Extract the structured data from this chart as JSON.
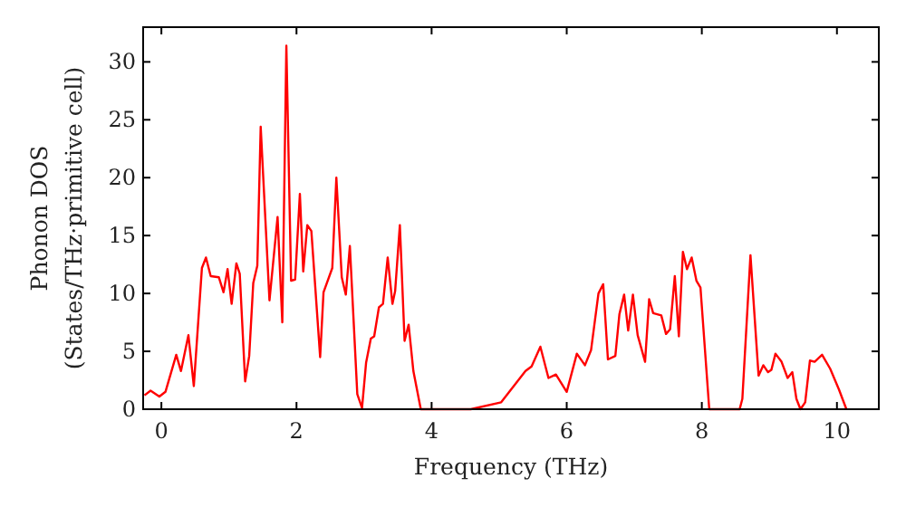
{
  "chart_data": {
    "type": "line",
    "xlabel": "Frequency (THz)",
    "ylabel": "Phonon DOS\n(States/THz·primitive cell)",
    "xlim": [
      -0.27,
      10.62
    ],
    "ylim": [
      0,
      33
    ],
    "xticks": [
      0,
      2,
      4,
      6,
      8,
      10
    ],
    "yticks": [
      0,
      5,
      10,
      15,
      20,
      25,
      30
    ],
    "grid": false,
    "series": [
      {
        "color": "#ff0000",
        "x": [
          -0.25,
          -0.16,
          -0.03,
          0.06,
          0.22,
          0.29,
          0.4,
          0.48,
          0.6,
          0.66,
          0.73,
          0.85,
          0.92,
          0.98,
          1.04,
          1.11,
          1.16,
          1.24,
          1.3,
          1.36,
          1.42,
          1.47,
          1.6,
          1.72,
          1.79,
          1.85,
          1.92,
          1.98,
          2.05,
          2.1,
          2.16,
          2.22,
          2.35,
          2.4,
          2.53,
          2.59,
          2.67,
          2.73,
          2.79,
          2.9,
          2.97,
          3.03,
          3.1,
          3.15,
          3.22,
          3.28,
          3.35,
          3.42,
          3.46,
          3.53,
          3.6,
          3.66,
          3.73,
          3.84,
          4.58,
          5.03,
          5.39,
          5.48,
          5.61,
          5.73,
          5.84,
          6.0,
          6.15,
          6.27,
          6.36,
          6.47,
          6.54,
          6.61,
          6.72,
          6.78,
          6.85,
          6.91,
          6.98,
          7.05,
          7.16,
          7.22,
          7.28,
          7.4,
          7.47,
          7.53,
          7.6,
          7.66,
          7.72,
          7.78,
          7.85,
          7.92,
          7.98,
          8.11,
          8.56,
          8.6,
          8.72,
          8.84,
          8.91,
          8.98,
          9.03,
          9.09,
          9.18,
          9.27,
          9.34,
          9.4,
          9.46,
          9.53,
          9.6,
          9.67,
          9.78,
          9.9,
          10.03,
          10.14
        ],
        "values": [
          1.2,
          1.6,
          1.1,
          1.5,
          4.7,
          3.3,
          6.4,
          2,
          12.2,
          13.1,
          11.5,
          11.4,
          10.1,
          12.1,
          9.1,
          12.6,
          11.7,
          2.4,
          4.6,
          10.9,
          12.4,
          24.4,
          9.4,
          16.6,
          7.5,
          31.4,
          11.1,
          11.2,
          18.6,
          11.9,
          15.9,
          15.4,
          4.5,
          10.1,
          12.2,
          20,
          11.4,
          9.9,
          14.1,
          1.3,
          0.1,
          4,
          6.1,
          6.3,
          8.8,
          9.1,
          13.1,
          9.1,
          10.2,
          15.9,
          5.9,
          7.3,
          3.3,
          0,
          0,
          0.6,
          3.3,
          3.7,
          5.4,
          2.7,
          3,
          1.5,
          4.8,
          3.8,
          5.1,
          10,
          10.8,
          4.3,
          4.6,
          8.2,
          9.9,
          6.8,
          9.9,
          6.4,
          4.1,
          9.5,
          8.3,
          8.1,
          6.5,
          6.9,
          11.5,
          6.3,
          13.6,
          12.1,
          13.1,
          11.1,
          10.5,
          0,
          0,
          0.9,
          13.3,
          2.9,
          3.8,
          3.2,
          3.4,
          4.8,
          4.1,
          2.7,
          3.2,
          0.9,
          0,
          0.6,
          4.2,
          4.1,
          4.7,
          3.5,
          1.7,
          0
        ]
      }
    ]
  }
}
